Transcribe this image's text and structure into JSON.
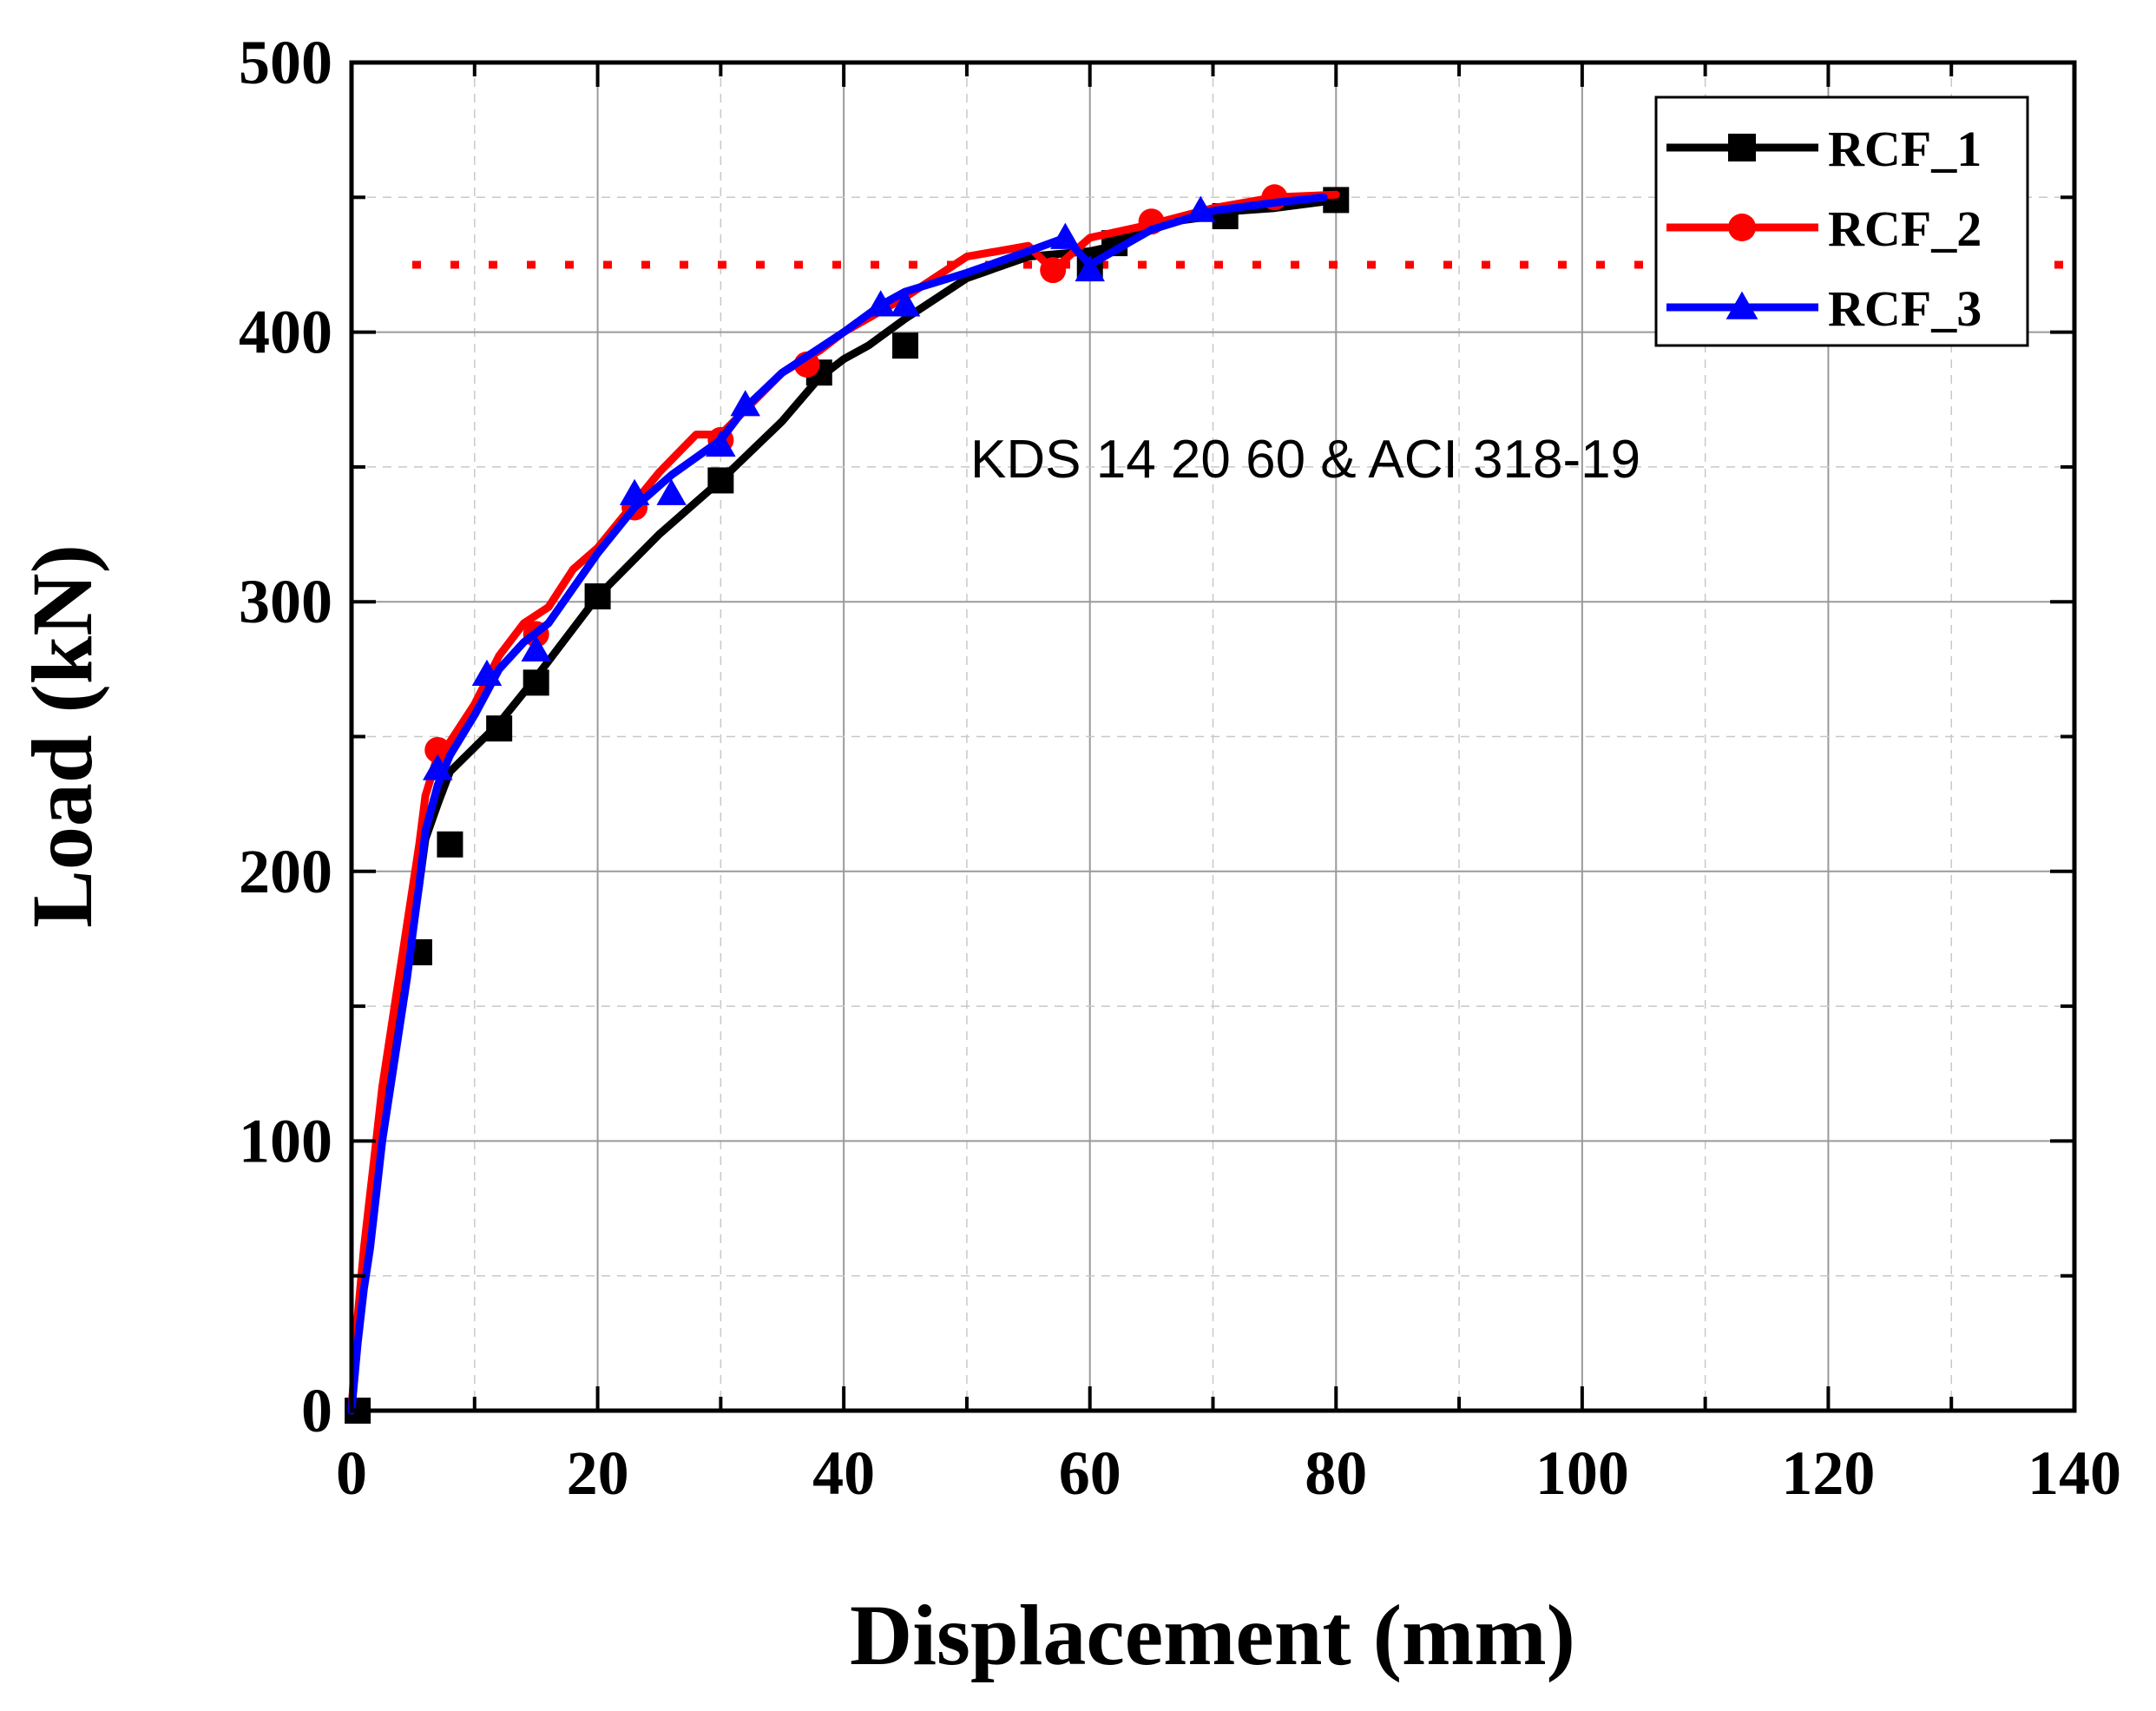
{
  "chart_data": {
    "type": "line",
    "xlabel": "Displacement (mm)",
    "ylabel": "Load (kN)",
    "xlim": [
      0,
      140
    ],
    "ylim": [
      0,
      500
    ],
    "xticks": [
      0,
      20,
      40,
      60,
      80,
      100,
      120,
      140
    ],
    "yticks": [
      0,
      100,
      200,
      300,
      400,
      500
    ],
    "grid": true,
    "legend_position": "top-right",
    "annotation": "KDS 14 20 60 & ACI 318-19",
    "reference_line": {
      "y": 425,
      "style": "dotted",
      "color": "#ff0000"
    },
    "series": [
      {
        "name": "RCF_1",
        "color": "#000000",
        "marker": "square",
        "x": [
          0,
          0.5,
          1,
          1.5,
          2,
          2.5,
          3,
          3.5,
          4,
          4.5,
          5,
          5.5,
          6,
          7,
          8,
          10,
          12,
          15,
          18,
          20,
          25,
          30,
          35,
          38,
          40,
          42,
          45,
          50,
          55,
          60,
          62,
          65,
          70,
          72,
          75,
          80
        ],
        "y": [
          0,
          30,
          50,
          65,
          85,
          105,
          120,
          135,
          150,
          165,
          180,
          195,
          212,
          225,
          237,
          246,
          255,
          272,
          290,
          302,
          325,
          345,
          367,
          383,
          390,
          395,
          405,
          420,
          428,
          430,
          432,
          440,
          443,
          445,
          446,
          449
        ],
        "markers_x": [
          0.5,
          5.5,
          8,
          12,
          15,
          20,
          30,
          38,
          45,
          60,
          62,
          71,
          80
        ],
        "markers_y": [
          0,
          170,
          210,
          253,
          270,
          302,
          345,
          385,
          395,
          425,
          433,
          443,
          449
        ]
      },
      {
        "name": "RCF_2",
        "color": "#ff0000",
        "marker": "circle",
        "x": [
          0,
          0.5,
          1,
          1.5,
          2,
          2.5,
          3,
          3.5,
          4,
          4.5,
          5,
          5.5,
          6,
          7,
          8,
          10,
          12,
          14,
          16,
          18,
          20,
          25,
          28,
          30,
          35,
          38,
          40,
          45,
          50,
          55,
          57,
          60,
          65,
          70,
          75,
          80
        ],
        "y": [
          0,
          35,
          60,
          80,
          100,
          120,
          135,
          150,
          165,
          180,
          195,
          210,
          228,
          243,
          248,
          262,
          280,
          292,
          298,
          312,
          320,
          348,
          362,
          362,
          385,
          393,
          400,
          413,
          428,
          432,
          423,
          435,
          440,
          446,
          450,
          451
        ],
        "markers_x": [
          7,
          15,
          23,
          30,
          37,
          57,
          65,
          75
        ],
        "markers_y": [
          245,
          288,
          335,
          360,
          388,
          423,
          441,
          450
        ]
      },
      {
        "name": "RCF_3",
        "color": "#0000ff",
        "marker": "triangle",
        "x": [
          0,
          0.5,
          1,
          1.5,
          2,
          2.5,
          3,
          3.5,
          4,
          4.5,
          5,
          5.5,
          6,
          7,
          8,
          10,
          12,
          14,
          16,
          18,
          20,
          23,
          26,
          30,
          32,
          35,
          40,
          43,
          45,
          50,
          55,
          58,
          60,
          65,
          70,
          75,
          79
        ],
        "y": [
          0,
          25,
          45,
          60,
          80,
          100,
          115,
          130,
          145,
          160,
          178,
          195,
          215,
          232,
          243,
          258,
          275,
          285,
          292,
          305,
          318,
          335,
          347,
          360,
          372,
          385,
          400,
          410,
          415,
          422,
          430,
          435,
          425,
          438,
          445,
          448,
          450
        ],
        "markers_x": [
          7,
          11,
          15,
          23,
          26,
          30,
          32,
          43,
          45,
          58,
          60,
          69
        ],
        "markers_y": [
          238,
          273,
          282,
          340,
          340,
          358,
          373,
          410,
          410,
          435,
          423,
          445
        ]
      }
    ]
  }
}
